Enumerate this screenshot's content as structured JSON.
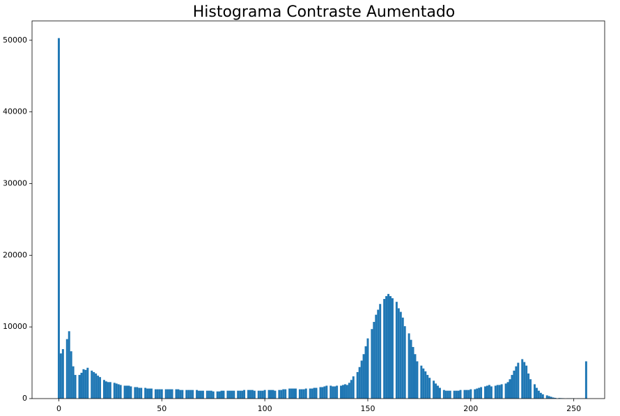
{
  "chart_data": {
    "type": "histogram",
    "title": "Histograma Contraste Aumentado",
    "color": "#1f77b4",
    "bins": [
      -0.5,
      0.5,
      1.5,
      2.5,
      3.5,
      4.5,
      5.5,
      6.5,
      7.5,
      8.5,
      9.5,
      10.5,
      11.5,
      12.5,
      13.5,
      14.5,
      15.5,
      16.5,
      17.5,
      18.5,
      19.5,
      20.5,
      21.5,
      22.5,
      23.5,
      24.5,
      25.5,
      26.5,
      27.5,
      28.5,
      29.5,
      30.5,
      31.5,
      32.5,
      33.5,
      34.5,
      35.5,
      36.5,
      37.5,
      38.5,
      39.5,
      40.5,
      41.5,
      42.5,
      43.5,
      44.5,
      45.5,
      46.5,
      47.5,
      48.5,
      49.5,
      50.5,
      51.5,
      52.5,
      53.5,
      54.5,
      55.5,
      56.5,
      57.5,
      58.5,
      59.5,
      60.5,
      61.5,
      62.5,
      63.5,
      64.5,
      65.5,
      66.5,
      67.5,
      68.5,
      69.5,
      70.5,
      71.5,
      72.5,
      73.5,
      74.5,
      75.5,
      76.5,
      77.5,
      78.5,
      79.5,
      80.5,
      81.5,
      82.5,
      83.5,
      84.5,
      85.5,
      86.5,
      87.5,
      88.5,
      89.5,
      90.5,
      91.5,
      92.5,
      93.5,
      94.5,
      95.5,
      96.5,
      97.5,
      98.5,
      99.5,
      100.5,
      101.5,
      102.5,
      103.5,
      104.5,
      105.5,
      106.5,
      107.5,
      108.5,
      109.5,
      110.5,
      111.5,
      112.5,
      113.5,
      114.5,
      115.5,
      116.5,
      117.5,
      118.5,
      119.5,
      120.5,
      121.5,
      122.5,
      123.5,
      124.5,
      125.5,
      126.5,
      127.5,
      128.5,
      129.5,
      130.5,
      131.5,
      132.5,
      133.5,
      134.5,
      135.5,
      136.5,
      137.5,
      138.5,
      139.5,
      140.5,
      141.5,
      142.5,
      143.5,
      144.5,
      145.5,
      146.5,
      147.5,
      148.5,
      149.5,
      150.5,
      151.5,
      152.5,
      153.5,
      154.5,
      155.5,
      156.5,
      157.5,
      158.5,
      159.5,
      160.5,
      161.5,
      162.5,
      163.5,
      164.5,
      165.5,
      166.5,
      167.5,
      168.5,
      169.5,
      170.5,
      171.5,
      172.5,
      173.5,
      174.5,
      175.5,
      176.5,
      177.5,
      178.5,
      179.5,
      180.5,
      181.5,
      182.5,
      183.5,
      184.5,
      185.5,
      186.5,
      187.5,
      188.5,
      189.5,
      190.5,
      191.5,
      192.5,
      193.5,
      194.5,
      195.5,
      196.5,
      197.5,
      198.5,
      199.5,
      200.5,
      201.5,
      202.5,
      203.5,
      204.5,
      205.5,
      206.5,
      207.5,
      208.5,
      209.5,
      210.5,
      211.5,
      212.5,
      213.5,
      214.5,
      215.5,
      216.5,
      217.5,
      218.5,
      219.5,
      220.5,
      221.5,
      222.5,
      223.5,
      224.5,
      225.5,
      226.5,
      227.5,
      228.5,
      229.5,
      230.5,
      231.5,
      232.5,
      233.5,
      234.5,
      235.5,
      236.5,
      237.5,
      238.5,
      239.5,
      240.5,
      241.5,
      242.5,
      243.5,
      244.5,
      245.5,
      246.5,
      247.5,
      248.5,
      249.5,
      250.5,
      251.5,
      252.5,
      253.5,
      254.5,
      255.5,
      256.5
    ],
    "values": [
      50300,
      6300,
      6900,
      0,
      8300,
      9400,
      6600,
      4500,
      3300,
      0,
      3300,
      3600,
      4100,
      4000,
      4300,
      0,
      3900,
      3700,
      3500,
      3200,
      3000,
      0,
      2600,
      2400,
      2300,
      2300,
      0,
      2200,
      2100,
      2000,
      1900,
      0,
      1800,
      1800,
      1800,
      1700,
      0,
      1600,
      1600,
      1500,
      1500,
      0,
      1500,
      1400,
      1400,
      1400,
      0,
      1300,
      1300,
      1300,
      1300,
      0,
      1300,
      1300,
      1300,
      1300,
      0,
      1300,
      1300,
      1200,
      1200,
      0,
      1200,
      1200,
      1200,
      1200,
      0,
      1200,
      1100,
      1100,
      1100,
      0,
      1100,
      1100,
      1100,
      1000,
      0,
      1000,
      1000,
      1100,
      1100,
      0,
      1100,
      1100,
      1100,
      1100,
      0,
      1100,
      1100,
      1100,
      1200,
      0,
      1200,
      1200,
      1200,
      1100,
      0,
      1100,
      1100,
      1100,
      1200,
      0,
      1200,
      1200,
      1200,
      1100,
      0,
      1200,
      1200,
      1300,
      1300,
      0,
      1400,
      1400,
      1400,
      1400,
      0,
      1300,
      1300,
      1300,
      1400,
      0,
      1400,
      1400,
      1500,
      1500,
      0,
      1600,
      1600,
      1700,
      1800,
      0,
      1800,
      1700,
      1700,
      1800,
      0,
      1800,
      1900,
      2000,
      1900,
      2200,
      2600,
      3100,
      0,
      3700,
      4400,
      5300,
      6200,
      7300,
      8400,
      0,
      9700,
      10700,
      11700,
      12400,
      13200,
      0,
      13900,
      14300,
      14600,
      14300,
      14000,
      0,
      13500,
      12600,
      12100,
      11300,
      10100,
      0,
      9100,
      8200,
      7200,
      6200,
      5200,
      0,
      4600,
      4200,
      3800,
      3300,
      2900,
      0,
      2500,
      2100,
      1800,
      1500,
      0,
      1200,
      1100,
      1100,
      1100,
      0,
      1100,
      1100,
      1100,
      1200,
      0,
      1200,
      1200,
      1200,
      1300,
      0,
      1300,
      1400,
      1500,
      1600,
      0,
      1700,
      1800,
      1900,
      1700,
      0,
      1800,
      1900,
      1900,
      2000,
      0,
      2100,
      2300,
      2700,
      3300,
      3900,
      4500,
      5000,
      0,
      5500,
      5100,
      4600,
      3500,
      2700,
      0,
      2000,
      1500,
      1100,
      800,
      600,
      0,
      450,
      350,
      250,
      150,
      100,
      0,
      80,
      60,
      50,
      0,
      40,
      40,
      30,
      30,
      0,
      30,
      30,
      30,
      30,
      5200
    ],
    "xlim": [
      -13,
      265
    ],
    "ylim": [
      0,
      52700
    ],
    "xticks": [
      0,
      50,
      100,
      150,
      200,
      250
    ],
    "yticks": [
      0,
      10000,
      20000,
      30000,
      40000,
      50000
    ]
  }
}
